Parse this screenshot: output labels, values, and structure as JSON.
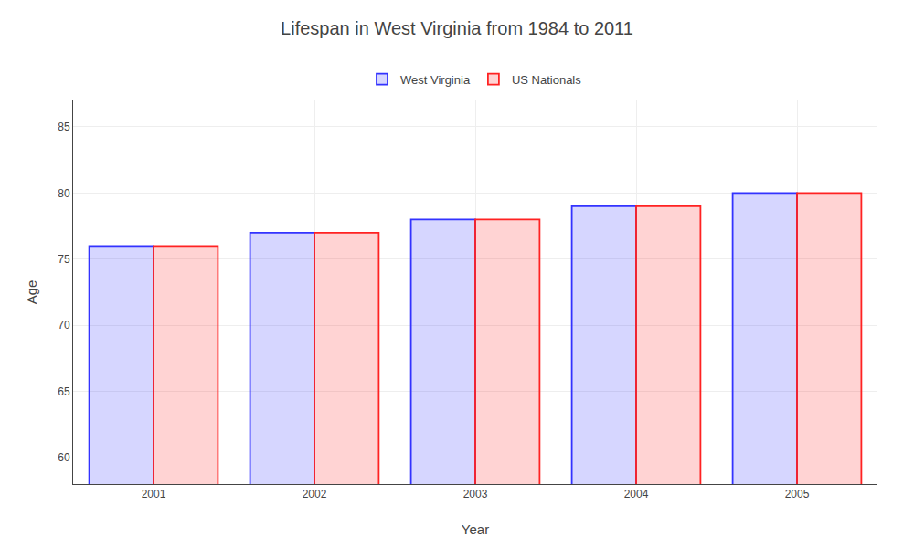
{
  "chart_data": {
    "type": "bar",
    "title": "Lifespan in West Virginia from 1984 to 2011",
    "xlabel": "Year",
    "ylabel": "Age",
    "categories": [
      "2001",
      "2002",
      "2003",
      "2004",
      "2005"
    ],
    "series": [
      {
        "name": "West Virginia",
        "color": "#3333ff",
        "values": [
          76,
          77,
          78,
          79,
          80
        ]
      },
      {
        "name": "US Nationals",
        "color": "#ff2222",
        "values": [
          76,
          77,
          78,
          79,
          80
        ]
      }
    ],
    "ylim": [
      58,
      87
    ],
    "yticks": [
      60,
      65,
      70,
      75,
      80,
      85
    ],
    "grid": true,
    "legend": "top"
  }
}
